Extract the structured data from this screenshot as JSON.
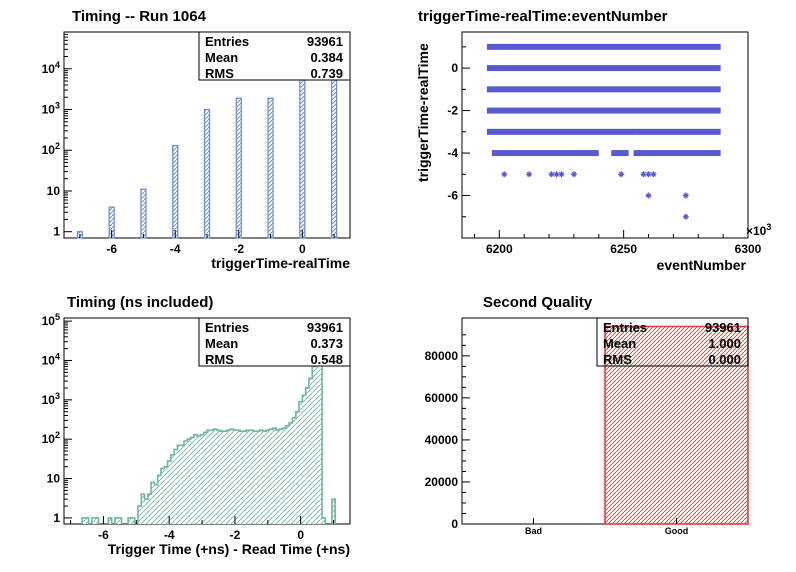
{
  "chart_data": [
    {
      "type": "bar",
      "title": "Timing -- Run 1064",
      "xlabel": "triggerTime-realTime",
      "ylabel": "",
      "y_scale": "log",
      "xlim": [
        -7.5,
        1.5
      ],
      "ylim": [
        0.7,
        80000
      ],
      "x_ticks": [
        -6,
        -4,
        -2,
        0
      ],
      "y_ticks": [
        {
          "value": 1,
          "base": "1",
          "exp": ""
        },
        {
          "value": 10,
          "base": "10",
          "exp": ""
        },
        {
          "value": 100,
          "base": "10",
          "exp": "2"
        },
        {
          "value": 1000,
          "base": "10",
          "exp": "3"
        },
        {
          "value": 10000,
          "base": "10",
          "exp": "4"
        }
      ],
      "x": [
        -7,
        -6,
        -5,
        -4,
        -3,
        -2,
        -1,
        0,
        1
      ],
      "values": [
        1,
        4,
        11,
        130,
        1000,
        1900,
        1900,
        45000,
        45000
      ],
      "color": "#6f8fcf",
      "stats": [
        {
          "label": "Entries",
          "value": "93961"
        },
        {
          "label": "Mean",
          "value": "0.384"
        },
        {
          "label": "RMS",
          "value": "0.739"
        }
      ]
    },
    {
      "type": "scatter",
      "title": "triggerTime-realTime:eventNumber",
      "xlabel": "eventNumber",
      "ylabel": "triggerTime-realTime",
      "xlim": [
        6185,
        6300
      ],
      "ylim": [
        -8,
        1.7
      ],
      "x_ticks": [
        6200,
        6250,
        6300
      ],
      "y_ticks": [
        0,
        -2,
        -4,
        -6
      ],
      "x_multiplier_base": "×10",
      "x_multiplier_exp": "3",
      "color": "#5a5ad0",
      "dense_rows": [
        {
          "y": 1,
          "x_range": [
            6195,
            6289
          ]
        },
        {
          "y": 0,
          "x_range": [
            6195,
            6289
          ]
        },
        {
          "y": -1,
          "x_range": [
            6195,
            6289
          ]
        },
        {
          "y": -2,
          "x_range": [
            6195,
            6289
          ]
        },
        {
          "y": -3,
          "x_range": [
            6195,
            6289
          ]
        },
        {
          "y": -4,
          "x_range": [
            6197,
            6289
          ]
        }
      ],
      "gaps": [
        {
          "y": -4,
          "x_range": [
            6240,
            6245
          ]
        },
        {
          "y": -4,
          "x_range": [
            6252,
            6254
          ]
        }
      ],
      "points": [
        {
          "x": 6202,
          "y": -5
        },
        {
          "x": 6212,
          "y": -5
        },
        {
          "x": 6221,
          "y": -5
        },
        {
          "x": 6223,
          "y": -5
        },
        {
          "x": 6225,
          "y": -5
        },
        {
          "x": 6230,
          "y": -5
        },
        {
          "x": 6249,
          "y": -5
        },
        {
          "x": 6258,
          "y": -5
        },
        {
          "x": 6260,
          "y": -5
        },
        {
          "x": 6262,
          "y": -5
        },
        {
          "x": 6260,
          "y": -6
        },
        {
          "x": 6275,
          "y": -6
        },
        {
          "x": 6275,
          "y": -7
        },
        {
          "x": 6233,
          "y": -4
        },
        {
          "x": 6248,
          "y": -4
        },
        {
          "x": 6256,
          "y": -3
        }
      ]
    },
    {
      "type": "bar",
      "title": "Timing (ns included)",
      "xlabel": "Trigger Time (+ns) - Read Time (+ns)",
      "ylabel": "",
      "y_scale": "log",
      "xlim": [
        -7.2,
        1.5
      ],
      "ylim": [
        0.7,
        120000
      ],
      "x_ticks": [
        -6,
        -4,
        -2,
        0
      ],
      "y_ticks": [
        {
          "value": 1,
          "base": "1",
          "exp": ""
        },
        {
          "value": 10,
          "base": "10",
          "exp": ""
        },
        {
          "value": 100,
          "base": "10",
          "exp": "2"
        },
        {
          "value": 1000,
          "base": "10",
          "exp": "3"
        },
        {
          "value": 10000,
          "base": "10",
          "exp": "4"
        },
        {
          "value": 100000,
          "base": "10",
          "exp": "5"
        }
      ],
      "bin_width": 0.1,
      "x": [
        -6.6,
        -6.5,
        -6.3,
        -6.2,
        -5.8,
        -5.6,
        -5.5,
        -5.2,
        -5.1,
        -4.9,
        -4.8,
        -4.7,
        -4.6,
        -4.5,
        -4.4,
        -4.3,
        -4.2,
        -4.1,
        -4.0,
        -3.9,
        -3.8,
        -3.7,
        -3.6,
        -3.5,
        -3.4,
        -3.3,
        -3.2,
        -3.1,
        -3.0,
        -2.9,
        -2.8,
        -2.7,
        -2.6,
        -2.5,
        -2.4,
        -2.3,
        -2.2,
        -2.1,
        -2.0,
        -1.9,
        -1.8,
        -1.7,
        -1.6,
        -1.5,
        -1.4,
        -1.3,
        -1.2,
        -1.1,
        -1.0,
        -0.9,
        -0.8,
        -0.7,
        -0.6,
        -0.5,
        -0.4,
        -0.3,
        -0.2,
        -0.1,
        0.0,
        0.1,
        0.2,
        0.3,
        0.4,
        0.5,
        0.6,
        0.7,
        1.0
      ],
      "values": [
        1,
        1,
        1,
        1,
        1,
        1,
        1,
        1,
        1,
        2,
        4,
        3,
        4,
        8,
        7,
        12,
        18,
        20,
        28,
        40,
        55,
        70,
        70,
        90,
        100,
        110,
        130,
        120,
        130,
        150,
        170,
        170,
        180,
        170,
        160,
        160,
        170,
        180,
        170,
        170,
        160,
        160,
        170,
        170,
        160,
        160,
        170,
        160,
        170,
        180,
        190,
        170,
        180,
        190,
        220,
        260,
        350,
        500,
        900,
        1300,
        2000,
        3500,
        7000,
        40000,
        9000,
        1,
        3
      ],
      "color": "#6fb89a",
      "stats": [
        {
          "label": "Entries",
          "value": "93961"
        },
        {
          "label": "Mean",
          "value": "0.373"
        },
        {
          "label": "RMS",
          "value": "0.548"
        }
      ]
    },
    {
      "type": "bar",
      "title": "Second Quality",
      "xlabel": "",
      "ylabel": "",
      "categories": [
        "Bad",
        "Good"
      ],
      "values": [
        0,
        93961
      ],
      "ylim": [
        0,
        98000
      ],
      "y_ticks": [
        0,
        20000,
        40000,
        60000,
        80000
      ],
      "color": "#d94040",
      "stats": [
        {
          "label": "Entries",
          "value": "93961"
        },
        {
          "label": "Mean",
          "value": "1.000"
        },
        {
          "label": "RMS",
          "value": "0.000"
        }
      ]
    }
  ]
}
